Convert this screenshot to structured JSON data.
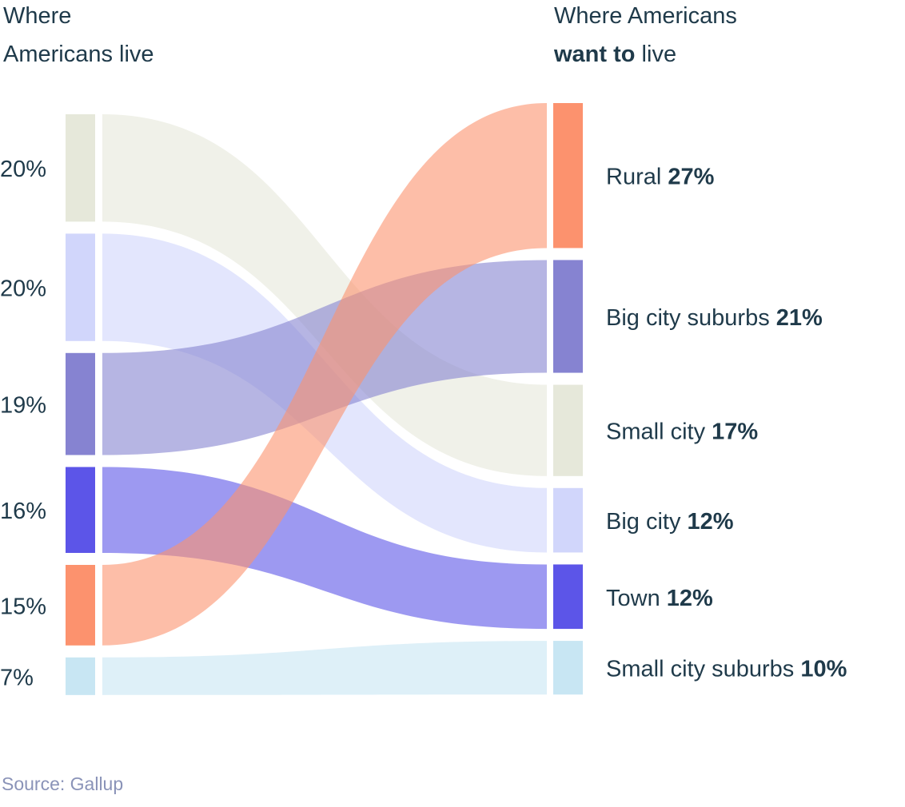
{
  "headers": {
    "left_line1": "Where",
    "left_line2": "Americans live",
    "right_line1": "Where Americans",
    "right_line2_bold": "want to",
    "right_line2_rest": " live"
  },
  "source": "Source: Gallup",
  "chart_data": {
    "type": "sankey",
    "left_nodes": [
      {
        "pct": "20%",
        "value": 20,
        "color": "#e6e8da"
      },
      {
        "pct": "20%",
        "value": 20,
        "color": "#d1d6fb"
      },
      {
        "pct": "19%",
        "value": 19,
        "color": "#8683d1"
      },
      {
        "pct": "16%",
        "value": 16,
        "color": "#5c55e8"
      },
      {
        "pct": "15%",
        "value": 15,
        "color": "#fc926e"
      },
      {
        "pct": "7%",
        "value": 7,
        "color": "#c8e6f3"
      }
    ],
    "right_nodes": [
      {
        "name": "Rural",
        "pct": "27%",
        "value": 27,
        "color": "#fc926e"
      },
      {
        "name": "Big city suburbs",
        "pct": "21%",
        "value": 21,
        "color": "#8683d1"
      },
      {
        "name": "Small city",
        "pct": "17%",
        "value": 17,
        "color": "#e6e8da"
      },
      {
        "name": "Big city",
        "pct": "12%",
        "value": 12,
        "color": "#d1d6fb"
      },
      {
        "name": "Town",
        "pct": "12%",
        "value": 12,
        "color": "#5c55e8"
      },
      {
        "name": "Small city suburbs",
        "pct": "10%",
        "value": 10,
        "color": "#c8e6f3"
      }
    ],
    "flows": [
      {
        "from": 0,
        "to": 2,
        "color": "#e6e8da"
      },
      {
        "from": 1,
        "to": 3,
        "color": "#d1d6fb"
      },
      {
        "from": 2,
        "to": 1,
        "color": "#8683d1"
      },
      {
        "from": 3,
        "to": 4,
        "color": "#5c55e8"
      },
      {
        "from": 4,
        "to": 0,
        "color": "#fc926e"
      },
      {
        "from": 5,
        "to": 5,
        "color": "#c8e6f3"
      }
    ]
  }
}
